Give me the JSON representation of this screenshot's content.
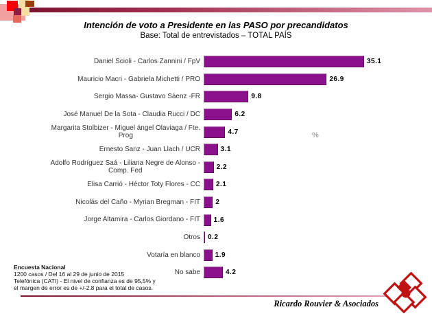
{
  "header": {
    "title": "Intención de voto a Presidente en las PASO por precandidatos",
    "subtitle": "Base: Total de entrevistados – TOTAL PAÍS"
  },
  "chart_data": {
    "type": "bar",
    "orientation": "horizontal",
    "unit_label": "%",
    "bar_color": "#8b108b",
    "xlim": [
      0,
      36
    ],
    "categories": [
      "Daniel Scioli - Carlos Zannini / FpV",
      "Mauricio Macri - Gabriela Michetti / PRO",
      "Sergio Massa- Gustavo Sáenz -FR",
      "José Manuel De la Sota - Claudia Rucci / DC",
      "Margarita Stolbizer - Miguel ángel Olaviaga / Fte.\nProg",
      "Ernesto Sanz - Juan Llach / UCR",
      "Adolfo Rodríguez Saá - Liliana Negre de Alonso -\nComp. Fed",
      "Elisa Carrió - Héctor Toty Flores - CC",
      "Nicolás del Caño - Myrian Bregman - FIT",
      "Jorge Altamira - Carlos Giordano - FIT",
      "Otros",
      "Votaría en blanco",
      "No sabe"
    ],
    "values": [
      35.1,
      26.9,
      9.8,
      6.2,
      4.7,
      3.1,
      2.2,
      2.1,
      2,
      1.6,
      0.2,
      1.9,
      4.2
    ],
    "value_labels": [
      "35.1",
      "26.9",
      "9.8",
      "6.2",
      "4.7",
      "3.1",
      "2.2",
      "2.1",
      "2",
      "1.6",
      "0.2",
      "1.9",
      "4.2"
    ]
  },
  "footnote": {
    "line1": "Encuesta Nacional",
    "line2": "1200 casos / Del 16 al 29 de junio de 2015",
    "line3": "Telefónica (CATI) - El nivel de confianza es de 95,5% y",
    "line4": "el margen de error es de +/-2.8 para el total de casos."
  },
  "footer": {
    "brand": "Ricardo Rouvier & Asociados"
  }
}
